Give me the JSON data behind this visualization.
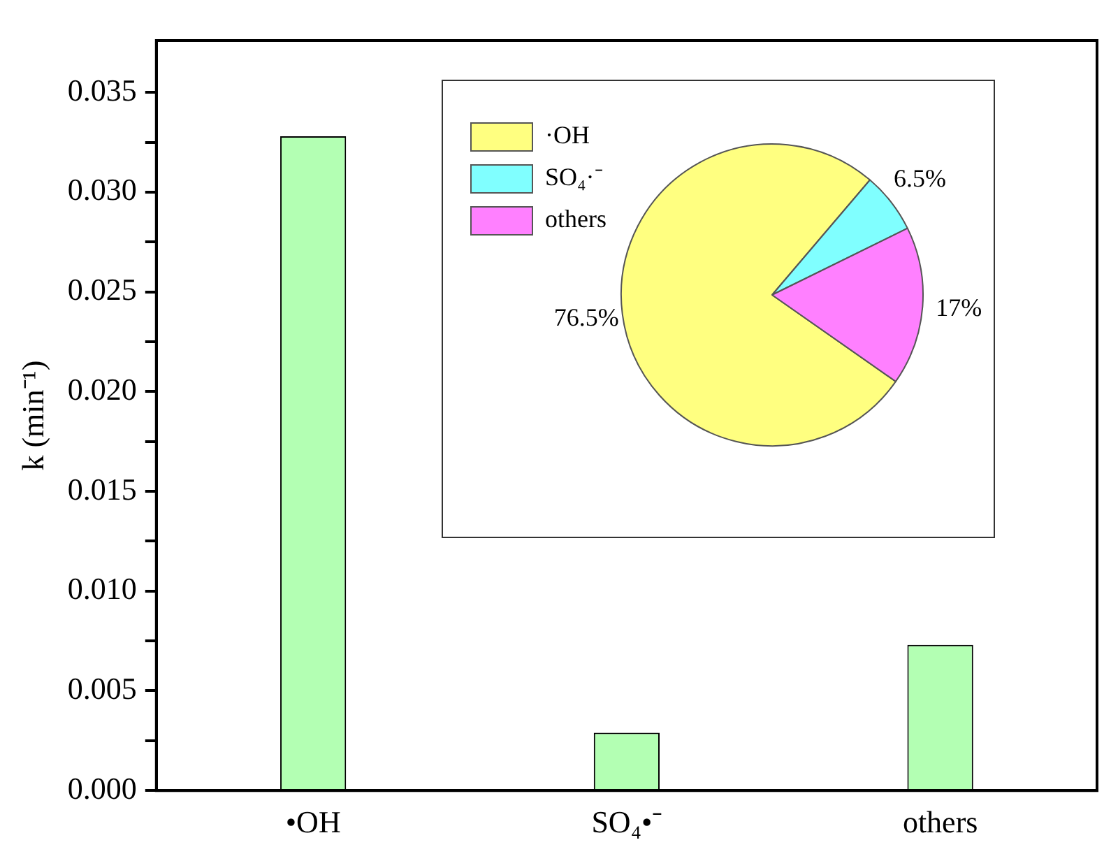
{
  "chart_data": [
    {
      "type": "bar",
      "ylabel": "k (min⁻¹)",
      "categories": [
        "•OH",
        "SO₄•⁻",
        "others"
      ],
      "values": [
        0.0328,
        0.0029,
        0.0073
      ],
      "color": "#b3ffb3",
      "ylim": [
        0,
        0.0376
      ],
      "yticks": [
        {
          "value": 0,
          "label": "0.000"
        },
        {
          "value": 0.0025,
          "label": null
        },
        {
          "value": 0.005,
          "label": "0.005"
        },
        {
          "value": 0.0075,
          "label": null
        },
        {
          "value": 0.01,
          "label": "0.010"
        },
        {
          "value": 0.0125,
          "label": null
        },
        {
          "value": 0.015,
          "label": "0.015"
        },
        {
          "value": 0.0175,
          "label": null
        },
        {
          "value": 0.02,
          "label": "0.020"
        },
        {
          "value": 0.0225,
          "label": null
        },
        {
          "value": 0.025,
          "label": "0.025"
        },
        {
          "value": 0.0275,
          "label": null
        },
        {
          "value": 0.03,
          "label": "0.030"
        },
        {
          "value": 0.0325,
          "label": null
        },
        {
          "value": 0.035,
          "label": "0.035"
        }
      ],
      "grid": false,
      "legend": false
    },
    {
      "type": "pie",
      "categories": [
        "·OH",
        "SO₄·⁻",
        "others"
      ],
      "values": [
        76.5,
        6.5,
        17
      ],
      "colors": [
        "#ffff80",
        "#80ffff",
        "#ff80ff"
      ],
      "value_labels": [
        "76.5%",
        "6.5%",
        "17%"
      ],
      "legend": "top left"
    }
  ]
}
